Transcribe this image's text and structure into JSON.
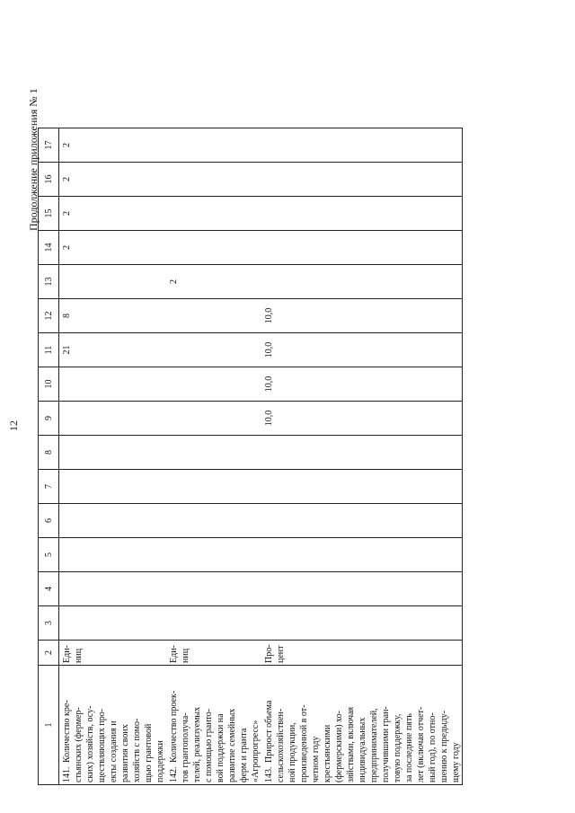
{
  "page_number": "12",
  "continuation_label": "Продолжение приложения № 1",
  "columns": [
    "1",
    "2",
    "3",
    "4",
    "5",
    "6",
    "7",
    "8",
    "9",
    "10",
    "11",
    "12",
    "13",
    "14",
    "15",
    "16",
    "17"
  ],
  "rows": [
    {
      "num": "141.",
      "name": "Количество кре-\nстьянских (фермер-\nских) хозяйств, осу-\nществляющих про-\nекты создания и\nразвития своих\nхозяйств с помо-\nщью грантовой\nподдержки",
      "unit": "Еди-\nниц",
      "v3": "",
      "v4": "",
      "v5": "",
      "v6": "",
      "v7": "",
      "v8": "",
      "v9": "",
      "v10": "",
      "v11": "21",
      "v12": "8",
      "v13": "",
      "v14": "2",
      "v15": "2",
      "v16": "2",
      "v17": "2"
    },
    {
      "num": "142.",
      "name": "Количество проек-\nтов грантополуча-\nтелей, реализуемых\nс помощью гранто-\nвой поддержки на\nразвитие семейных\nферм и гранта\n«Агропрогресс»",
      "unit": "Еди-\nниц",
      "v3": "",
      "v4": "",
      "v5": "",
      "v6": "",
      "v7": "",
      "v8": "",
      "v9": "",
      "v10": "",
      "v11": "",
      "v12": "",
      "v13": "2",
      "v14": "",
      "v15": "",
      "v16": "",
      "v17": ""
    },
    {
      "num": "143.",
      "name": "Прирост объема\nсельскохозяйствен-\nной продукции,\nпроизведенной в от-\nчетном году\nкрестьянскими\n(фермерскими) хо-\nзяйствами, включая\nиндивидуальных\nпредпринимателей,\nполучившими гран-\nтовую поддержку,\nза последние пять\nлет (включая отчет-\nный год), по отно-\nшению к предыду-\nщему году",
      "unit": "Про-\nцент",
      "v3": "",
      "v4": "",
      "v5": "",
      "v6": "",
      "v7": "",
      "v8": "",
      "v9": "10,0",
      "v10": "10,0",
      "v11": "10,0",
      "v12": "10,0",
      "v13": "",
      "v14": "",
      "v15": "",
      "v16": "",
      "v17": ""
    }
  ]
}
